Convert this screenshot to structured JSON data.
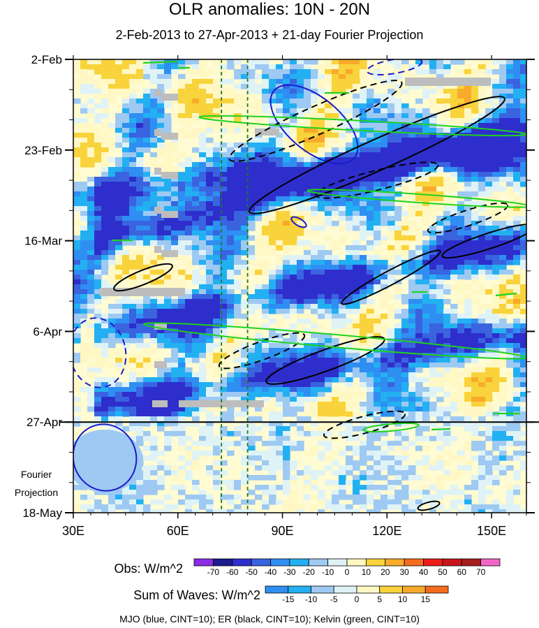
{
  "title": "OLR anomalies: 10N - 20N",
  "subtitle": "2-Feb-2013 to 27-Apr-2013 + 21-day Fourier Projection",
  "footer": "MJO (blue, CINT=10); ER (black, CINT=10); Kelvin (green, CINT=10)",
  "chart_data": {
    "type": "heatmap",
    "x_range": [
      30,
      160
    ],
    "y_range": [
      "2-Feb-2013",
      "18-May-2013"
    ],
    "x_ticks": [
      {
        "value": 30,
        "label": "30E"
      },
      {
        "value": 60,
        "label": "60E"
      },
      {
        "value": 90,
        "label": "90E"
      },
      {
        "value": 120,
        "label": "120E"
      },
      {
        "value": 150,
        "label": "150E"
      }
    ],
    "y_ticks": [
      {
        "value": "2-Feb-2013",
        "label": "2-Feb"
      },
      {
        "value": "23-Feb-2013",
        "label": "23-Feb"
      },
      {
        "value": "16-Mar-2013",
        "label": "16-Mar"
      },
      {
        "value": "6-Apr-2013",
        "label": "6-Apr"
      },
      {
        "value": "27-Apr-2013",
        "label": "27-Apr"
      },
      {
        "value": "18-May-2013",
        "label": "18-May"
      }
    ],
    "observation_end": "27-Apr-2013",
    "projection_label": [
      "Fourier",
      "Projection"
    ],
    "reference_longitudes": [
      72.5,
      80
    ],
    "obs_colorbar": {
      "title": "Obs: W/m^2",
      "labels": [
        "-70",
        "-60",
        "-50",
        "-40",
        "-30",
        "-20",
        "-10",
        "0",
        "10",
        "20",
        "30",
        "40",
        "50",
        "60",
        "70"
      ],
      "colors": [
        "#8b2be2",
        "#1c1c8c",
        "#2e2ecc",
        "#3a63e0",
        "#2f8ef2",
        "#22b0f2",
        "#9ec9f2",
        "#dff3f6",
        "#fff8c4",
        "#f9d33b",
        "#f8ab2b",
        "#f46d1e",
        "#ee1b1b",
        "#c9151a",
        "#a61d1d",
        "#f266c8"
      ]
    },
    "waves_colorbar": {
      "title": "Sum of Waves: W/m^2",
      "labels": [
        "-15",
        "-10",
        "-5",
        "0",
        "5",
        "10",
        "15"
      ],
      "colors": [
        "#2f8ef2",
        "#22b0f2",
        "#9ec9f2",
        "#dff3f6",
        "#fff8c4",
        "#f9d33b",
        "#f8ab2b",
        "#f46d1e"
      ]
    },
    "contour_colors": {
      "MJO": "#1a1acc",
      "ER": "#000000",
      "Kelvin": "#1ed21e",
      "reference_lines": "#1f7a1f"
    }
  }
}
